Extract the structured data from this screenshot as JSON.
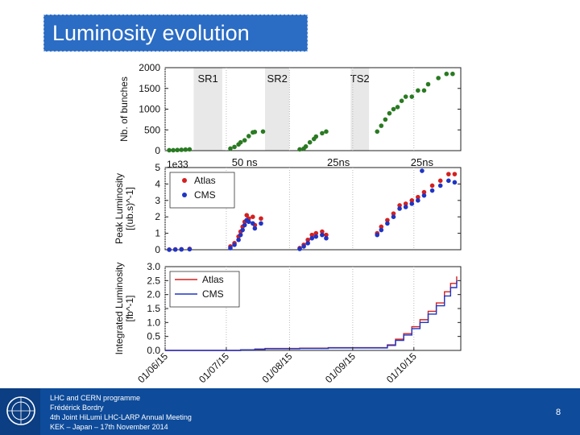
{
  "slide": {
    "title": "Luminosity evolution",
    "footer_lines": [
      "LHC and CERN programme",
      "Frédérick Bordry",
      "4th Joint HiLumi LHC-LARP Annual Meeting",
      "KEK – Japan – 17th November 2014"
    ],
    "page_number": "8",
    "logo_text": "CERN"
  },
  "chart_data": [
    {
      "type": "scatter",
      "ylabel": "Nb. of bunches",
      "ylim": [
        0,
        2000
      ],
      "yticks": [
        "0",
        "500",
        "1000",
        "1500",
        "2000"
      ],
      "shaded_periods": [
        {
          "label": "SR1",
          "x": [
            "2015-06-15",
            "2015-06-29"
          ]
        },
        {
          "label": "SR2",
          "x": [
            "2015-07-20",
            "2015-08-01"
          ]
        },
        {
          "label": "TS2",
          "x": [
            "2015-08-31",
            "2015-09-09"
          ]
        }
      ],
      "annotations": [
        {
          "text": "50 ns",
          "x": "2015-07-10"
        },
        {
          "text": "25ns",
          "x": "2015-08-25"
        },
        {
          "text": "25ns",
          "x": "2015-10-05"
        }
      ],
      "series": [
        {
          "color": "#2a7a22",
          "points": [
            [
              "2015-06-03",
              10
            ],
            [
              "2015-06-05",
              10
            ],
            [
              "2015-06-07",
              15
            ],
            [
              "2015-06-09",
              20
            ],
            [
              "2015-06-11",
              25
            ],
            [
              "2015-06-13",
              30
            ],
            [
              "2015-07-03",
              50
            ],
            [
              "2015-07-05",
              90
            ],
            [
              "2015-07-07",
              150
            ],
            [
              "2015-07-08",
              200
            ],
            [
              "2015-07-10",
              250
            ],
            [
              "2015-07-12",
              350
            ],
            [
              "2015-07-14",
              440
            ],
            [
              "2015-07-15",
              450
            ],
            [
              "2015-07-19",
              460
            ],
            [
              "2015-08-06",
              30
            ],
            [
              "2015-08-08",
              50
            ],
            [
              "2015-08-09",
              100
            ],
            [
              "2015-08-11",
              200
            ],
            [
              "2015-08-13",
              280
            ],
            [
              "2015-08-14",
              340
            ],
            [
              "2015-08-17",
              420
            ],
            [
              "2015-08-19",
              460
            ],
            [
              "2015-09-13",
              460
            ],
            [
              "2015-09-15",
              600
            ],
            [
              "2015-09-17",
              750
            ],
            [
              "2015-09-19",
              900
            ],
            [
              "2015-09-21",
              1000
            ],
            [
              "2015-09-23",
              1050
            ],
            [
              "2015-09-25",
              1200
            ],
            [
              "2015-09-27",
              1300
            ],
            [
              "2015-09-30",
              1300
            ],
            [
              "2015-10-03",
              1450
            ],
            [
              "2015-10-06",
              1450
            ],
            [
              "2015-10-08",
              1600
            ],
            [
              "2015-10-13",
              1750
            ],
            [
              "2015-10-17",
              1850
            ],
            [
              "2015-10-20",
              1850
            ]
          ]
        }
      ]
    },
    {
      "type": "scatter",
      "ylabel": "Peak Luminosity [(ub.s)^-1]",
      "ylim": [
        0,
        5
      ],
      "yticks": [
        "0",
        "1",
        "2",
        "3",
        "4",
        "5"
      ],
      "scale_label": "1e33",
      "legend": "top-left",
      "series": [
        {
          "name": "Atlas",
          "color": "#d42020",
          "points": [
            [
              "2015-06-03",
              0.01
            ],
            [
              "2015-06-06",
              0.02
            ],
            [
              "2015-06-09",
              0.03
            ],
            [
              "2015-06-13",
              0.05
            ],
            [
              "2015-07-03",
              0.2
            ],
            [
              "2015-07-05",
              0.4
            ],
            [
              "2015-07-07",
              0.8
            ],
            [
              "2015-07-08",
              1.1
            ],
            [
              "2015-07-09",
              1.4
            ],
            [
              "2015-07-10",
              1.7
            ],
            [
              "2015-07-11",
              2.1
            ],
            [
              "2015-07-12",
              1.9
            ],
            [
              "2015-07-14",
              2.0
            ],
            [
              "2015-07-15",
              1.5
            ],
            [
              "2015-07-18",
              1.9
            ],
            [
              "2015-08-06",
              0.1
            ],
            [
              "2015-08-08",
              0.3
            ],
            [
              "2015-08-10",
              0.6
            ],
            [
              "2015-08-12",
              0.9
            ],
            [
              "2015-08-14",
              1.0
            ],
            [
              "2015-08-17",
              1.1
            ],
            [
              "2015-08-19",
              0.9
            ],
            [
              "2015-09-13",
              1.0
            ],
            [
              "2015-09-15",
              1.4
            ],
            [
              "2015-09-18",
              1.8
            ],
            [
              "2015-09-21",
              2.2
            ],
            [
              "2015-09-24",
              2.7
            ],
            [
              "2015-09-27",
              2.8
            ],
            [
              "2015-09-30",
              3.0
            ],
            [
              "2015-10-03",
              3.2
            ],
            [
              "2015-10-06",
              3.5
            ],
            [
              "2015-10-10",
              3.9
            ],
            [
              "2015-10-14",
              4.2
            ],
            [
              "2015-10-18",
              4.6
            ],
            [
              "2015-10-21",
              4.6
            ]
          ]
        },
        {
          "name": "CMS",
          "color": "#1f35c4",
          "points": [
            [
              "2015-06-03",
              0.0
            ],
            [
              "2015-06-06",
              0.01
            ],
            [
              "2015-06-09",
              0.02
            ],
            [
              "2015-06-13",
              0.03
            ],
            [
              "2015-07-03",
              0.1
            ],
            [
              "2015-07-05",
              0.3
            ],
            [
              "2015-07-07",
              0.6
            ],
            [
              "2015-07-08",
              0.9
            ],
            [
              "2015-07-09",
              1.2
            ],
            [
              "2015-07-10",
              1.5
            ],
            [
              "2015-07-11",
              1.8
            ],
            [
              "2015-07-12",
              1.7
            ],
            [
              "2015-07-14",
              1.6
            ],
            [
              "2015-07-15",
              1.3
            ],
            [
              "2015-07-18",
              1.6
            ],
            [
              "2015-08-06",
              0.05
            ],
            [
              "2015-08-08",
              0.2
            ],
            [
              "2015-08-10",
              0.4
            ],
            [
              "2015-08-12",
              0.7
            ],
            [
              "2015-08-14",
              0.8
            ],
            [
              "2015-08-17",
              0.9
            ],
            [
              "2015-08-19",
              0.7
            ],
            [
              "2015-09-13",
              0.9
            ],
            [
              "2015-09-15",
              1.2
            ],
            [
              "2015-09-18",
              1.6
            ],
            [
              "2015-09-21",
              2.0
            ],
            [
              "2015-09-24",
              2.5
            ],
            [
              "2015-09-27",
              2.6
            ],
            [
              "2015-09-30",
              2.8
            ],
            [
              "2015-10-03",
              3.0
            ],
            [
              "2015-10-05",
              4.8
            ],
            [
              "2015-10-06",
              3.3
            ],
            [
              "2015-10-10",
              3.6
            ],
            [
              "2015-10-14",
              3.9
            ],
            [
              "2015-10-18",
              4.2
            ],
            [
              "2015-10-21",
              4.1
            ]
          ]
        }
      ]
    },
    {
      "type": "line",
      "ylabel": "Integrated Luminosity [fb^-1]",
      "ylim": [
        0,
        3.0
      ],
      "yticks": [
        "0.0",
        "0.5",
        "1.0",
        "1.5",
        "2.0",
        "2.5",
        "3.0"
      ],
      "legend": "top-left",
      "xlim": [
        "2015-06-01",
        "2015-10-24"
      ],
      "xticks": [
        "01/06/15",
        "01/07/15",
        "01/08/15",
        "01/09/15",
        "01/10/15"
      ],
      "grid": true,
      "series": [
        {
          "name": "Atlas",
          "color": "#d42020",
          "points": [
            [
              "2015-06-01",
              0.0
            ],
            [
              "2015-07-03",
              0.0
            ],
            [
              "2015-07-08",
              0.02
            ],
            [
              "2015-07-15",
              0.05
            ],
            [
              "2015-07-20",
              0.07
            ],
            [
              "2015-08-06",
              0.08
            ],
            [
              "2015-08-20",
              0.1
            ],
            [
              "2015-09-12",
              0.1
            ],
            [
              "2015-09-18",
              0.2
            ],
            [
              "2015-09-22",
              0.4
            ],
            [
              "2015-09-26",
              0.6
            ],
            [
              "2015-09-30",
              0.85
            ],
            [
              "2015-10-04",
              1.1
            ],
            [
              "2015-10-08",
              1.4
            ],
            [
              "2015-10-12",
              1.7
            ],
            [
              "2015-10-16",
              2.1
            ],
            [
              "2015-10-19",
              2.4
            ],
            [
              "2015-10-22",
              2.65
            ]
          ]
        },
        {
          "name": "CMS",
          "color": "#1f35c4",
          "points": [
            [
              "2015-06-01",
              0.0
            ],
            [
              "2015-07-03",
              0.0
            ],
            [
              "2015-07-08",
              0.02
            ],
            [
              "2015-07-15",
              0.04
            ],
            [
              "2015-07-20",
              0.06
            ],
            [
              "2015-08-06",
              0.07
            ],
            [
              "2015-08-20",
              0.09
            ],
            [
              "2015-09-12",
              0.09
            ],
            [
              "2015-09-18",
              0.18
            ],
            [
              "2015-09-22",
              0.36
            ],
            [
              "2015-09-26",
              0.55
            ],
            [
              "2015-09-30",
              0.78
            ],
            [
              "2015-10-04",
              1.0
            ],
            [
              "2015-10-08",
              1.3
            ],
            [
              "2015-10-12",
              1.6
            ],
            [
              "2015-10-16",
              1.95
            ],
            [
              "2015-10-19",
              2.25
            ],
            [
              "2015-10-22",
              2.5
            ]
          ]
        }
      ]
    }
  ]
}
